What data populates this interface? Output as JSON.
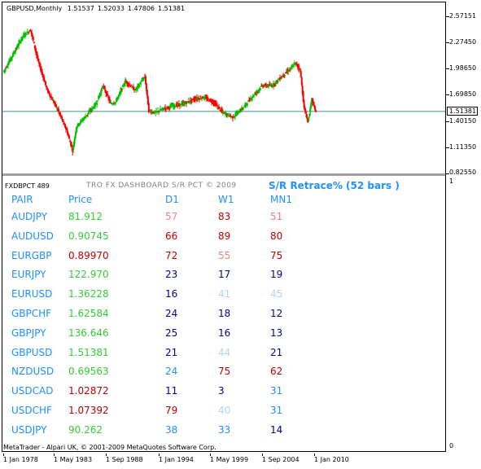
{
  "chart": {
    "symbol": "GBPUSD,Monthly",
    "ohlc": [
      "1.51537",
      "1.52033",
      "1.47806",
      "1.51381"
    ],
    "current_price": "1.51381",
    "price_line_color": "#3f8f8f",
    "up_color": "#00c000",
    "down_color": "#ff0000"
  },
  "y_axis": [
    "2.57151",
    "2.27450",
    "1.98650",
    "1.69850",
    "1.40150",
    "1.11350",
    "0.82550"
  ],
  "x_axis": [
    "1 Jan 1978",
    "1 May 1983",
    "1 Sep 1988",
    "1 Jan 1994",
    "1 May 1999",
    "1 Sep 2004",
    "1 Jan 2010"
  ],
  "chart_data": {
    "type": "line",
    "title": "GBPUSD,Monthly",
    "xlabel": "",
    "ylabel": "",
    "ylim": [
      0.8255,
      2.5715
    ],
    "x": [
      1978.0,
      1979.0,
      1980.0,
      1980.8,
      1981.5,
      1982.5,
      1983.5,
      1984.5,
      1985.1,
      1985.5,
      1986.5,
      1987.5,
      1988.2,
      1989.0,
      1989.5,
      1990.5,
      1991.5,
      1992.5,
      1992.9,
      1993.5,
      1994.5,
      1995.5,
      1996.5,
      1997.5,
      1998.5,
      1999.5,
      2000.5,
      2001.5,
      2002.5,
      2003.5,
      2004.5,
      2005.5,
      2006.5,
      2007.5,
      2007.9,
      2008.4,
      2008.8,
      2009.2,
      2009.6,
      2010.0
    ],
    "series": [
      {
        "values": [
          1.95,
          2.15,
          2.35,
          2.42,
          2.1,
          1.75,
          1.55,
          1.3,
          1.08,
          1.35,
          1.47,
          1.6,
          1.8,
          1.6,
          1.62,
          1.85,
          1.75,
          1.9,
          1.52,
          1.5,
          1.55,
          1.58,
          1.6,
          1.65,
          1.67,
          1.62,
          1.5,
          1.45,
          1.55,
          1.68,
          1.8,
          1.8,
          1.9,
          2.0,
          2.05,
          1.98,
          1.55,
          1.4,
          1.65,
          1.51
        ]
      }
    ]
  },
  "indicator": {
    "name": "FXDBPCT 489",
    "scale_top": "1",
    "scale_bottom": "0",
    "header": "TRO FX DASHBOARD S/R PCT © 2009",
    "title": "S/R Retrace% (52 bars )",
    "columns": [
      "PAIR",
      "Price",
      "D1",
      "W1",
      "MN1"
    ],
    "rows": [
      {
        "pair": "AUDJPY",
        "price": "81.912",
        "price_color": "#32cd32",
        "d1": "57",
        "d1_color": "#f08080",
        "w1": "83",
        "w1_color": "#c00000",
        "mn1": "51",
        "mn1_color": "#f08080"
      },
      {
        "pair": "AUDUSD",
        "price": "0.90745",
        "price_color": "#32cd32",
        "d1": "66",
        "d1_color": "#c00000",
        "w1": "89",
        "w1_color": "#c00000",
        "mn1": "80",
        "mn1_color": "#c00000"
      },
      {
        "pair": "EURGBP",
        "price": "0.89970",
        "price_color": "#c00000",
        "d1": "72",
        "d1_color": "#c00000",
        "w1": "55",
        "w1_color": "#f08080",
        "mn1": "75",
        "mn1_color": "#c00000"
      },
      {
        "pair": "EURJPY",
        "price": "122.970",
        "price_color": "#32cd32",
        "d1": "23",
        "d1_color": "#00008b",
        "w1": "17",
        "w1_color": "#00008b",
        "mn1": "19",
        "mn1_color": "#00008b"
      },
      {
        "pair": "EURUSD",
        "price": "1.36228",
        "price_color": "#32cd32",
        "d1": "16",
        "d1_color": "#00008b",
        "w1": "41",
        "w1_color": "#add8e6",
        "mn1": "45",
        "mn1_color": "#add8e6"
      },
      {
        "pair": "GBPCHF",
        "price": "1.62584",
        "price_color": "#32cd32",
        "d1": "24",
        "d1_color": "#00008b",
        "w1": "18",
        "w1_color": "#00008b",
        "mn1": "12",
        "mn1_color": "#00008b"
      },
      {
        "pair": "GBPJPY",
        "price": "136.646",
        "price_color": "#32cd32",
        "d1": "25",
        "d1_color": "#00008b",
        "w1": "16",
        "w1_color": "#00008b",
        "mn1": "13",
        "mn1_color": "#00008b"
      },
      {
        "pair": "GBPUSD",
        "price": "1.51381",
        "price_color": "#32cd32",
        "d1": "21",
        "d1_color": "#00008b",
        "w1": "44",
        "w1_color": "#add8e6",
        "mn1": "21",
        "mn1_color": "#00008b"
      },
      {
        "pair": "NZDUSD",
        "price": "0.69563",
        "price_color": "#32cd32",
        "d1": "24",
        "d1_color": "#1e90ff",
        "w1": "75",
        "w1_color": "#c00000",
        "mn1": "62",
        "mn1_color": "#c00000"
      },
      {
        "pair": "USDCAD",
        "price": "1.02872",
        "price_color": "#c00000",
        "d1": "11",
        "d1_color": "#00008b",
        "w1": "3",
        "w1_color": "#00008b",
        "mn1": "31",
        "mn1_color": "#1e90ff"
      },
      {
        "pair": "USDCHF",
        "price": "1.07392",
        "price_color": "#c00000",
        "d1": "79",
        "d1_color": "#c00000",
        "w1": "40",
        "w1_color": "#add8e6",
        "mn1": "31",
        "mn1_color": "#1e90ff"
      },
      {
        "pair": "USDJPY",
        "price": "90.262",
        "price_color": "#32cd32",
        "d1": "38",
        "d1_color": "#1e90ff",
        "w1": "33",
        "w1_color": "#1e90ff",
        "mn1": "14",
        "mn1_color": "#00008b"
      }
    ],
    "pair_color": "#1e90ff"
  },
  "footer": "MetaTrader - Alpari UK, © 2001-2009 MetaQuotes Software Corp."
}
